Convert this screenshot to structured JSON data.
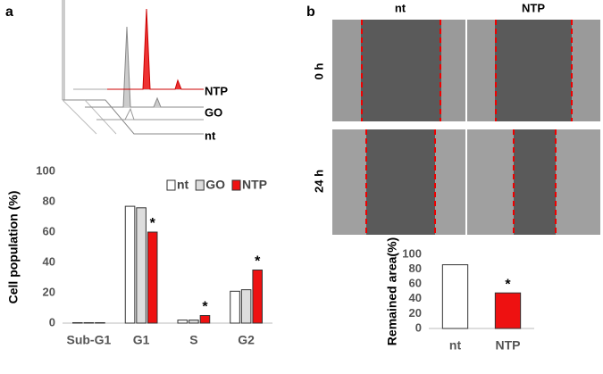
{
  "panel_labels": [
    "a",
    "b"
  ],
  "histogram": {
    "labels": [
      "NTP",
      "GO",
      "nt"
    ]
  },
  "images": {
    "columns": [
      "nt",
      "NTP"
    ],
    "rows": [
      "0 h",
      "24 h"
    ]
  },
  "chart_data": [
    {
      "type": "bar",
      "ylabel": "Cell population (%)",
      "categories": [
        "Sub-G1",
        "G1",
        "S",
        "G2"
      ],
      "series": [
        {
          "name": "nt",
          "color": "#ffffff",
          "values": [
            0.3,
            77,
            2,
            21
          ]
        },
        {
          "name": "GO",
          "color": "#dddddd",
          "values": [
            0.3,
            76,
            2,
            22
          ]
        },
        {
          "name": "NTP",
          "color": "#ee1111",
          "values": [
            0.3,
            60,
            5,
            35
          ],
          "markers": [
            null,
            "*",
            "*",
            "*"
          ]
        }
      ],
      "ylim": [
        0,
        100
      ],
      "yticks": [
        0,
        20,
        40,
        60,
        80,
        100
      ],
      "legend": "top-right"
    },
    {
      "type": "bar",
      "ylabel": "Remained area(%)",
      "categories": [
        "nt",
        "NTP"
      ],
      "values": [
        86,
        48
      ],
      "colors": [
        "#ffffff",
        "#ee1111"
      ],
      "markers": [
        null,
        "*"
      ],
      "ylim": [
        0,
        100
      ],
      "yticks": [
        0,
        20,
        40,
        60,
        80,
        100
      ]
    }
  ]
}
